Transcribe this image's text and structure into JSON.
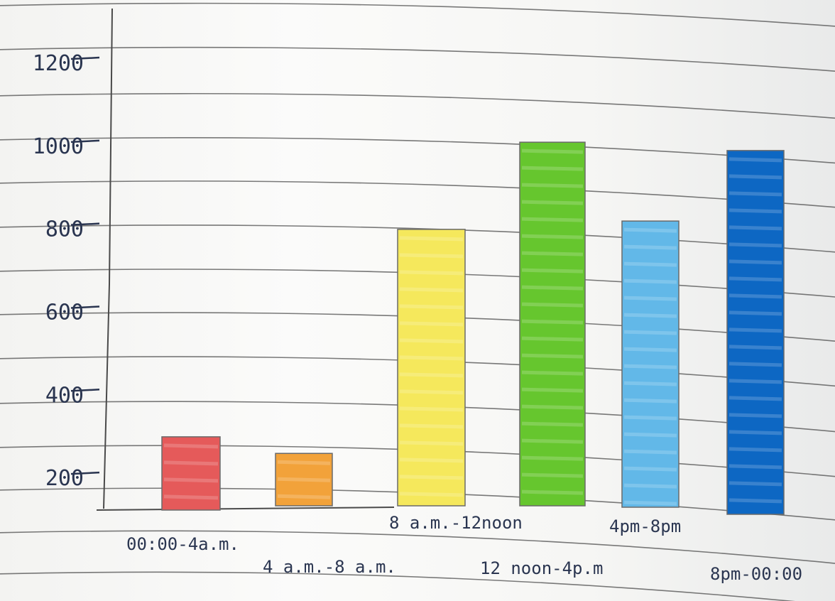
{
  "chart_data": {
    "type": "bar",
    "title": "",
    "xlabel": "",
    "ylabel": "",
    "categories": [
      "00:00-4a.m.",
      "4 a.m.-8 a.m.",
      "8 a.m.-12noon",
      "12 noon-4p.m",
      "4pm-8pm",
      "8pm-00:00"
    ],
    "values": [
      310,
      270,
      810,
      1020,
      830,
      1000
    ],
    "bar_colors": [
      "#e55a5a",
      "#f2a23a",
      "#f5e85c",
      "#66c62e",
      "#62b8e8",
      "#0d67c3"
    ],
    "yticks": [
      200,
      400,
      600,
      800,
      1000,
      1200
    ],
    "ytick_labels": [
      "200",
      "400",
      "600",
      "800",
      "1000",
      "1200"
    ],
    "ylim": [
      130,
      1260
    ],
    "grid": false,
    "legend": "none"
  },
  "colors": {
    "paper": "#f7f7f5",
    "rule_lines": "#4e4e4e",
    "axis": "#4a4a4a",
    "ink": "#2a3550"
  }
}
